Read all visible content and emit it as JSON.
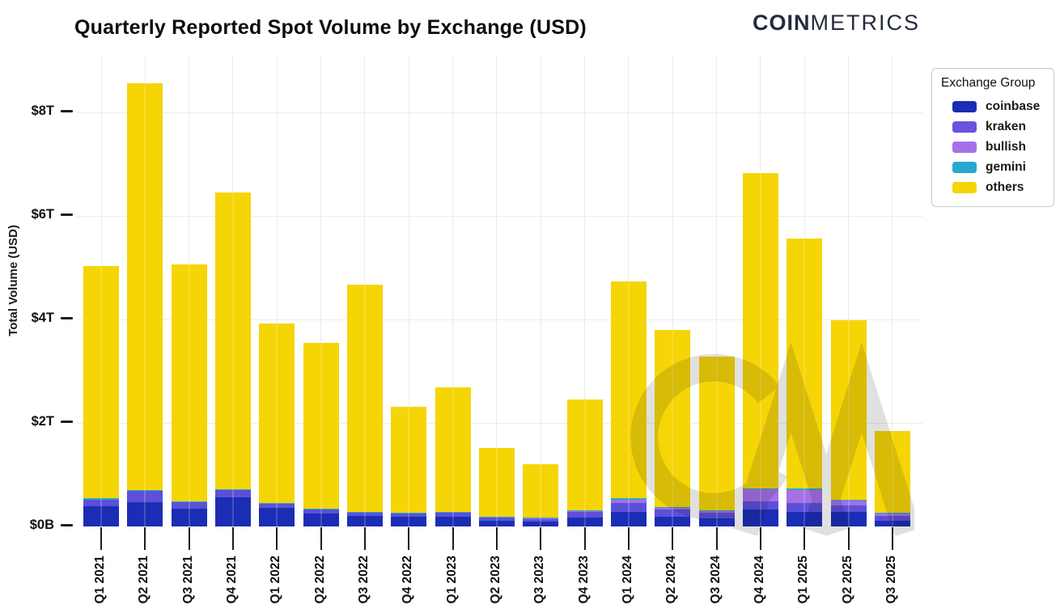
{
  "header": {
    "title": "Quarterly Reported Spot Volume by Exchange (USD)",
    "logo_bold": "COIN",
    "logo_light": "METRICS"
  },
  "watermark": "CM",
  "y_axis": {
    "title": "Total Volume (USD)",
    "tick_labels": [
      "$0B",
      "$2T",
      "$4T",
      "$6T",
      "$8T"
    ],
    "tick_values": [
      0,
      2,
      4,
      6,
      8
    ]
  },
  "legend": {
    "title": "Exchange Group",
    "items": [
      {
        "label": "coinbase",
        "color": "#1b2db4"
      },
      {
        "label": "kraken",
        "color": "#6a52e0"
      },
      {
        "label": "bullish",
        "color": "#a671e8"
      },
      {
        "label": "gemini",
        "color": "#28a8cf"
      },
      {
        "label": "others",
        "color": "#f5d506"
      }
    ]
  },
  "chart_data": {
    "type": "bar",
    "stacked": true,
    "title": "Quarterly Reported Spot Volume by Exchange (USD)",
    "xlabel": "",
    "ylabel": "Total Volume (USD)",
    "unit": "trillions of USD",
    "ylim": [
      0,
      9.2
    ],
    "grid": true,
    "legend_position": "right",
    "categories": [
      "Q1 2021",
      "Q2 2021",
      "Q3 2021",
      "Q4 2021",
      "Q1 2022",
      "Q2 2022",
      "Q3 2022",
      "Q4 2022",
      "Q1 2023",
      "Q2 2023",
      "Q3 2023",
      "Q4 2023",
      "Q1 2024",
      "Q2 2024",
      "Q3 2024",
      "Q4 2024",
      "Q1 2025",
      "Q2 2025",
      "Q3 2025"
    ],
    "series": [
      {
        "name": "coinbase",
        "color": "#1b2db4",
        "values": [
          0.39,
          0.47,
          0.35,
          0.56,
          0.36,
          0.25,
          0.2,
          0.19,
          0.19,
          0.11,
          0.09,
          0.17,
          0.28,
          0.19,
          0.16,
          0.33,
          0.28,
          0.28,
          0.11
        ]
      },
      {
        "name": "kraken",
        "color": "#5c50d9",
        "values": [
          0.13,
          0.22,
          0.12,
          0.14,
          0.09,
          0.08,
          0.07,
          0.06,
          0.08,
          0.07,
          0.06,
          0.11,
          0.17,
          0.14,
          0.11,
          0.16,
          0.17,
          0.13,
          0.1
        ]
      },
      {
        "name": "bullish",
        "color": "#a56fe5",
        "values": [
          0,
          0,
          0,
          0,
          0,
          0,
          0,
          0,
          0,
          0,
          0.01,
          0.03,
          0.07,
          0.04,
          0.04,
          0.23,
          0.26,
          0.09,
          0.04
        ]
      },
      {
        "name": "gemini",
        "color": "#28a8cf",
        "values": [
          0.02,
          0.02,
          0.02,
          0.02,
          0.01,
          0.01,
          0.01,
          0.01,
          0.01,
          0.01,
          0.01,
          0.01,
          0.02,
          0.01,
          0.01,
          0.02,
          0.02,
          0.01,
          0.01
        ]
      },
      {
        "name": "others",
        "color": "#f5d506",
        "values": [
          4.49,
          7.86,
          4.57,
          5.73,
          3.46,
          3.2,
          4.39,
          2.05,
          2.4,
          1.32,
          1.04,
          2.14,
          4.2,
          3.42,
          2.96,
          6.09,
          4.84,
          3.47,
          1.59
        ]
      }
    ],
    "totals": [
      5.03,
      8.57,
      5.06,
      6.45,
      3.92,
      3.54,
      4.67,
      2.31,
      2.68,
      1.51,
      1.21,
      2.46,
      4.74,
      3.8,
      3.28,
      6.83,
      5.57,
      3.98,
      1.85
    ]
  }
}
